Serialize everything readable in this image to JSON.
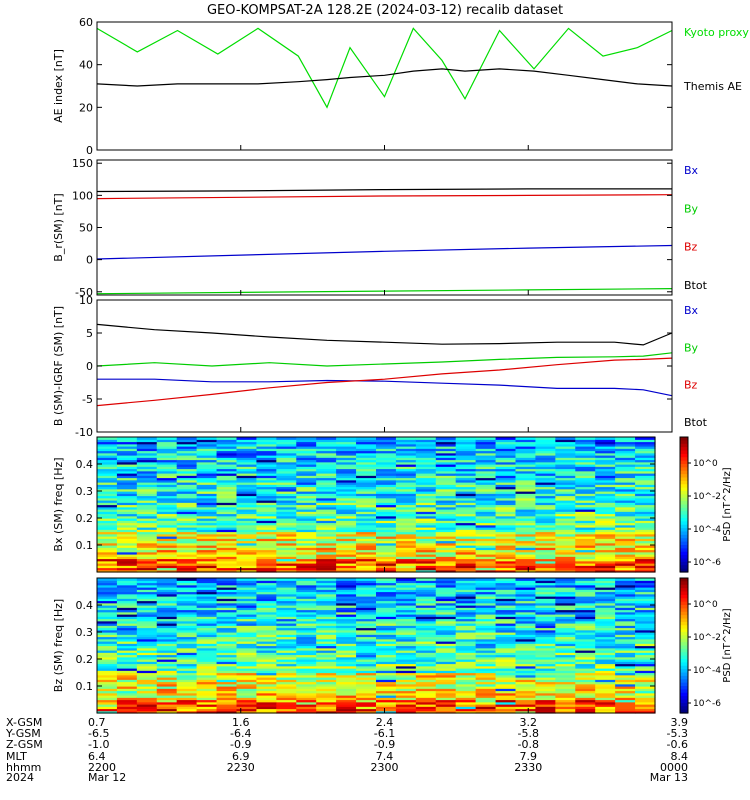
{
  "title": "GEO-KOMPSAT-2A 128.2E (2024-03-12) recalib dataset",
  "chart_data": [
    {
      "type": "line",
      "ylabel": "AE index [nT]",
      "ylim": [
        0,
        60
      ],
      "yticks": [
        0,
        20,
        40,
        60
      ],
      "x": [
        0,
        0.07,
        0.14,
        0.21,
        0.28,
        0.35,
        0.4,
        0.44,
        0.5,
        0.55,
        0.6,
        0.64,
        0.7,
        0.76,
        0.82,
        0.88,
        0.94,
        1.0
      ],
      "series": [
        {
          "name": "Kyoto proxy AE",
          "color": "#00dd00",
          "values": [
            57,
            46,
            56,
            45,
            57,
            44,
            20,
            48,
            25,
            57,
            42,
            24,
            56,
            38,
            57,
            44,
            48,
            56
          ]
        },
        {
          "name": "Themis AE",
          "color": "#000000",
          "values": [
            31,
            30,
            31,
            31,
            31,
            32,
            33,
            34,
            35,
            37,
            38,
            37,
            38,
            37,
            35,
            33,
            31,
            30
          ]
        }
      ],
      "legend": "right"
    },
    {
      "type": "line",
      "ylabel": "B_r(SM) [nT]",
      "ylim": [
        -55,
        155
      ],
      "yticks": [
        -50,
        0,
        50,
        100,
        150
      ],
      "x": [
        0,
        0.25,
        0.5,
        0.75,
        1.0
      ],
      "series": [
        {
          "name": "Bx",
          "color": "#0000cc",
          "values": [
            1,
            7,
            13,
            18,
            22
          ]
        },
        {
          "name": "By",
          "color": "#00cc00",
          "values": [
            -53,
            -51,
            -49,
            -47,
            -45
          ]
        },
        {
          "name": "Bz",
          "color": "#dd0000",
          "values": [
            95,
            97,
            99,
            100,
            101
          ]
        },
        {
          "name": "Btot",
          "color": "#000000",
          "values": [
            106,
            107,
            109,
            110,
            110
          ]
        }
      ],
      "legend": "right"
    },
    {
      "type": "line",
      "ylabel": "B (SM)-IGRF (SM) [nT]",
      "ylim": [
        -10,
        10
      ],
      "yticks": [
        -10,
        -5,
        0,
        5,
        10
      ],
      "x": [
        0,
        0.1,
        0.2,
        0.3,
        0.4,
        0.5,
        0.6,
        0.7,
        0.8,
        0.9,
        0.95,
        1.0
      ],
      "series": [
        {
          "name": "Bx",
          "color": "#0000cc",
          "values": [
            -2.0,
            -2.0,
            -2.4,
            -2.4,
            -2.2,
            -2.3,
            -2.6,
            -2.9,
            -3.4,
            -3.4,
            -3.6,
            -4.5
          ]
        },
        {
          "name": "By",
          "color": "#00cc00",
          "values": [
            0.0,
            0.5,
            0.0,
            0.5,
            0.0,
            0.3,
            0.6,
            1.0,
            1.3,
            1.4,
            1.5,
            2.0
          ]
        },
        {
          "name": "Bz",
          "color": "#dd0000",
          "values": [
            -6.0,
            -5.2,
            -4.3,
            -3.3,
            -2.5,
            -2.0,
            -1.2,
            -0.6,
            0.2,
            0.9,
            1.0,
            1.2
          ]
        },
        {
          "name": "Btot",
          "color": "#000000",
          "values": [
            6.3,
            5.5,
            5.0,
            4.4,
            3.9,
            3.6,
            3.3,
            3.4,
            3.6,
            3.6,
            3.2,
            5.0
          ]
        }
      ],
      "legend": "right"
    },
    {
      "type": "heatmap",
      "ylabel": "Bx (SM) freq [Hz]",
      "ylim": [
        0,
        0.5
      ],
      "yticks": [
        0.1,
        0.2,
        0.3,
        0.4
      ],
      "colorbar": {
        "label": "PSD [nT^2/Hz]",
        "ticks": [
          "10^0",
          "10^-2",
          "10^-4",
          "10^-6"
        ]
      },
      "columns": 28,
      "rows": 60,
      "seed": 7
    },
    {
      "type": "heatmap",
      "ylabel": "Bz (SM) freq [Hz]",
      "ylim": [
        0,
        0.5
      ],
      "yticks": [
        0.1,
        0.2,
        0.3,
        0.4
      ],
      "colorbar": {
        "label": "PSD [nT^2/Hz]",
        "ticks": [
          "10^0",
          "10^-2",
          "10^-4",
          "10^-6"
        ]
      },
      "columns": 28,
      "rows": 60,
      "seed": 19
    }
  ],
  "ephemeris": {
    "row_labels": [
      "X-GSM",
      "Y-GSM",
      "Z-GSM",
      "MLT",
      "hhmm",
      "2024"
    ],
    "columns": [
      {
        "x": 0.0,
        "values": [
          "0.7",
          "-6.5",
          "-1.0",
          "6.4",
          "2200",
          "Mar 12"
        ]
      },
      {
        "x": 0.25,
        "values": [
          "1.6",
          "-6.4",
          "-0.9",
          "6.9",
          "2230",
          ""
        ]
      },
      {
        "x": 0.5,
        "values": [
          "2.4",
          "-6.1",
          "-0.9",
          "7.4",
          "2300",
          ""
        ]
      },
      {
        "x": 0.75,
        "values": [
          "3.2",
          "-5.8",
          "-0.8",
          "7.9",
          "2330",
          ""
        ]
      },
      {
        "x": 1.0,
        "values": [
          "3.9",
          "-5.3",
          "-0.6",
          "8.4",
          "0000",
          "Mar 13"
        ]
      }
    ]
  },
  "colors": {
    "axis": "#000000",
    "ae_green": "#00dd00",
    "bx": "#0000cc",
    "by": "#00cc00",
    "bz": "#dd0000",
    "btot": "#000000"
  }
}
